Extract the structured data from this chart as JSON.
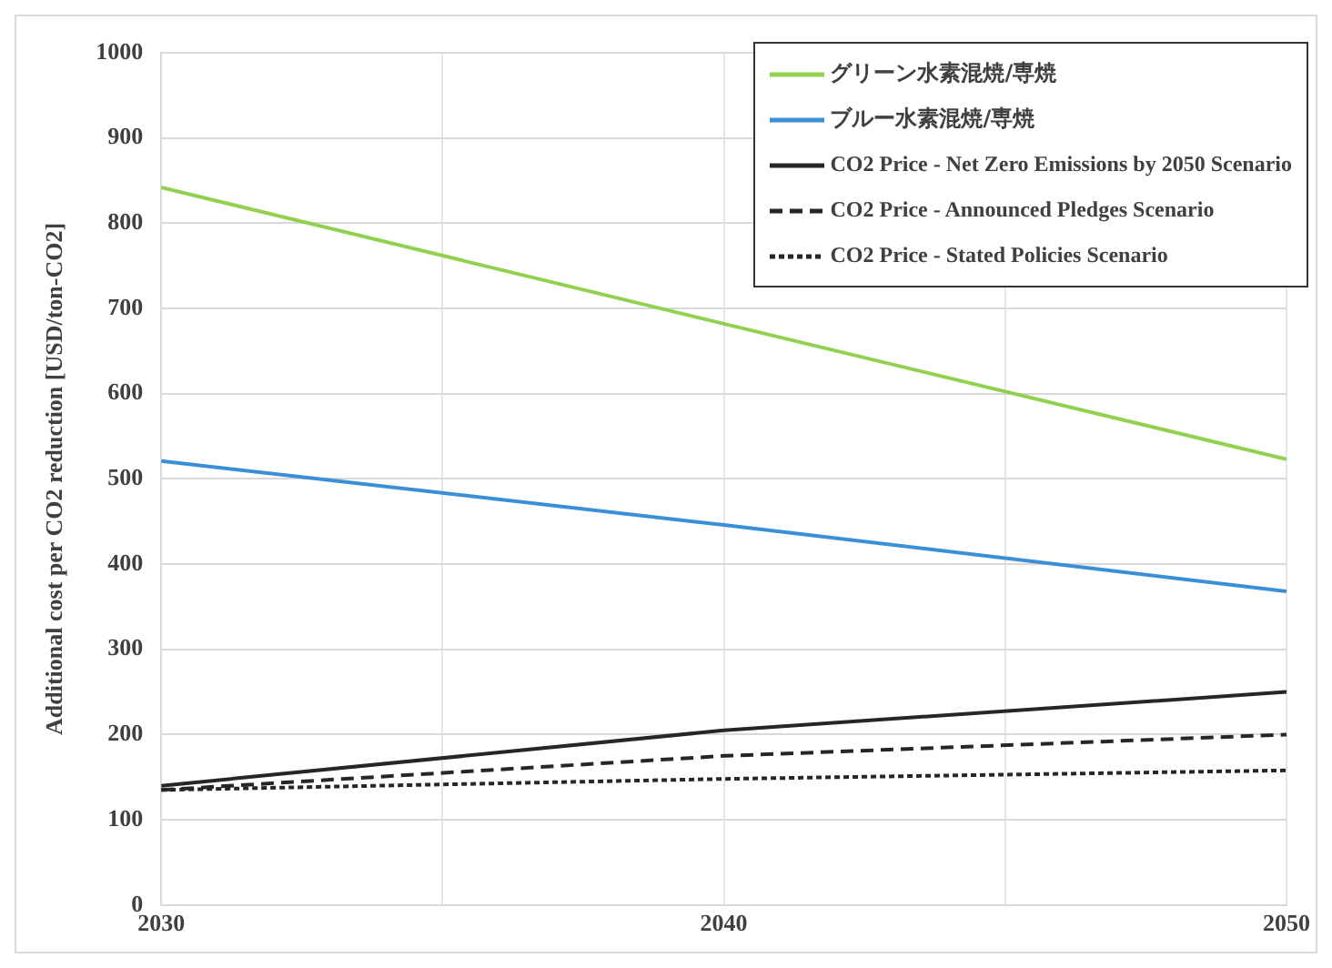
{
  "chart_data": {
    "type": "line",
    "ylabel": "Additional cost per CO2 reduction [USD/ton-CO2]",
    "x": [
      2030,
      2040,
      2050
    ],
    "xlim": [
      2030,
      2050
    ],
    "xticks": [
      2030,
      {
        "value": 2035,
        "label": null
      },
      2040,
      {
        "value": 2045,
        "label": null
      },
      2050
    ],
    "ylim": [
      0,
      1000
    ],
    "yticks": [
      0,
      100,
      200,
      300,
      400,
      500,
      600,
      700,
      800,
      900,
      1000
    ],
    "grid": true,
    "legend": "top right",
    "marker": "none",
    "series": [
      {
        "name": "グリーン水素混焼/専焼",
        "color": "#92d050",
        "values": [
          842,
          682,
          523
        ]
      },
      {
        "name": "ブルー水素混焼/専焼",
        "color": "#3b8fd6",
        "values": [
          521,
          446,
          368
        ]
      },
      {
        "name": "CO2 Price - Net Zero Emissions by 2050 Scenario",
        "color": "#262626",
        "values": [
          140,
          205,
          250
        ],
        "line_style": "solid"
      },
      {
        "name": "CO2 Price - Announced Pledges Scenario",
        "color": "#262626",
        "values": [
          135,
          175,
          200
        ],
        "line_style": "dashed"
      },
      {
        "name": "CO2 Price - Stated Policies Scenario",
        "color": "#262626",
        "values": [
          135,
          148,
          158
        ],
        "line_style": "dotted"
      }
    ]
  }
}
